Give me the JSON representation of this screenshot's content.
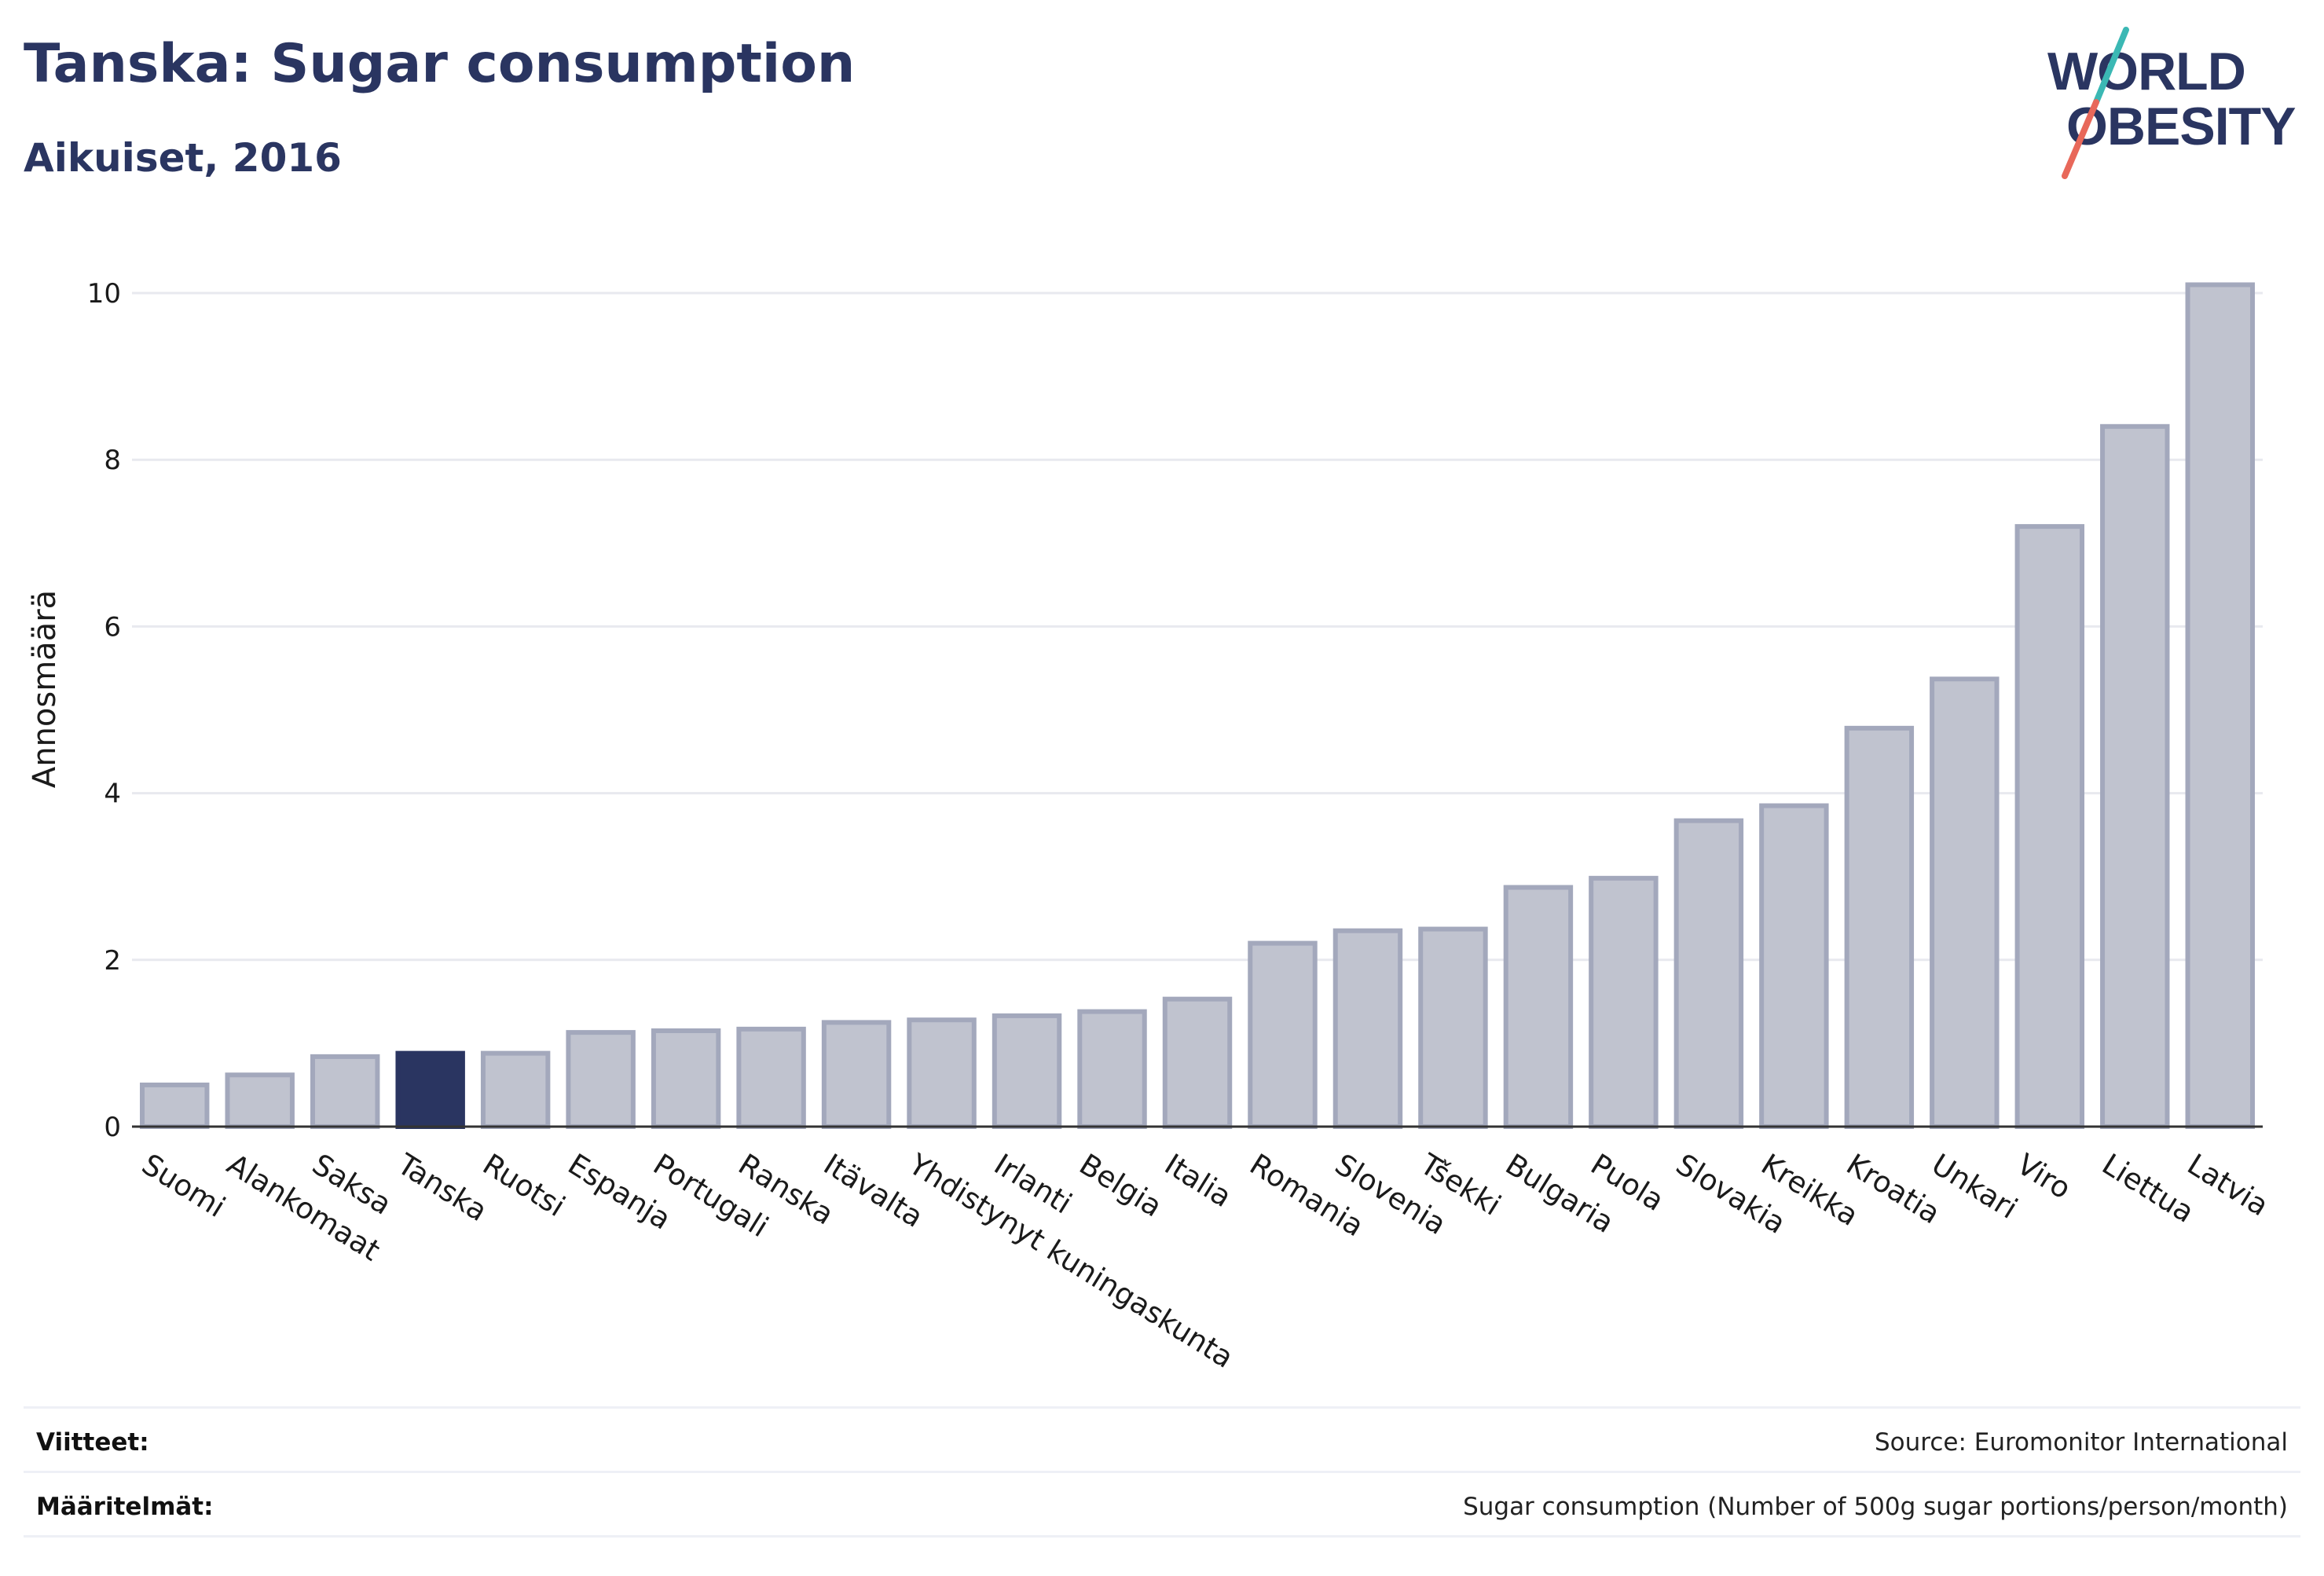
{
  "header": {
    "title": "Tanska: Sugar consumption",
    "subtitle": "Aikuiset, 2016"
  },
  "logo": {
    "line1": "WORLD",
    "line2": "OBESITY"
  },
  "chart_data": {
    "type": "bar",
    "ylabel": "Annosmäärä",
    "xlabel": "",
    "ylim": [
      0,
      10.5
    ],
    "yticks": [
      0,
      2,
      4,
      6,
      8,
      10
    ],
    "grid": true,
    "highlight": "Tanska",
    "categories": [
      "Suomi",
      "Alankomaat",
      "Saksa",
      "Tanska",
      "Ruotsi",
      "Espanja",
      "Portugali",
      "Ranska",
      "Itävalta",
      "Yhdistynyt kuningaskunta",
      "Irlanti",
      "Belgia",
      "Italia",
      "Romania",
      "Slovenia",
      "Tšekki",
      "Bulgaria",
      "Puola",
      "Slovakia",
      "Kreikka",
      "Kroatia",
      "Unkari",
      "Viro",
      "Liettua",
      "Latvia"
    ],
    "values": [
      0.5,
      0.62,
      0.84,
      0.88,
      0.88,
      1.13,
      1.15,
      1.17,
      1.25,
      1.28,
      1.33,
      1.38,
      1.53,
      2.2,
      2.35,
      2.37,
      2.87,
      2.98,
      3.67,
      3.85,
      4.78,
      5.37,
      7.2,
      8.4,
      10.1
    ],
    "colors": {
      "bar": "#c0c3cf",
      "bar_stroke": "#a3a8bc",
      "highlight": "#2a3561",
      "grid": "#e8e9ef",
      "axis": "#333333"
    }
  },
  "footer": {
    "references_label": "Viitteet:",
    "references_value": "Source: Euromonitor International",
    "definitions_label": "Määritelmät:",
    "definitions_value": "Sugar consumption (Number of 500g sugar portions/person/month)"
  }
}
